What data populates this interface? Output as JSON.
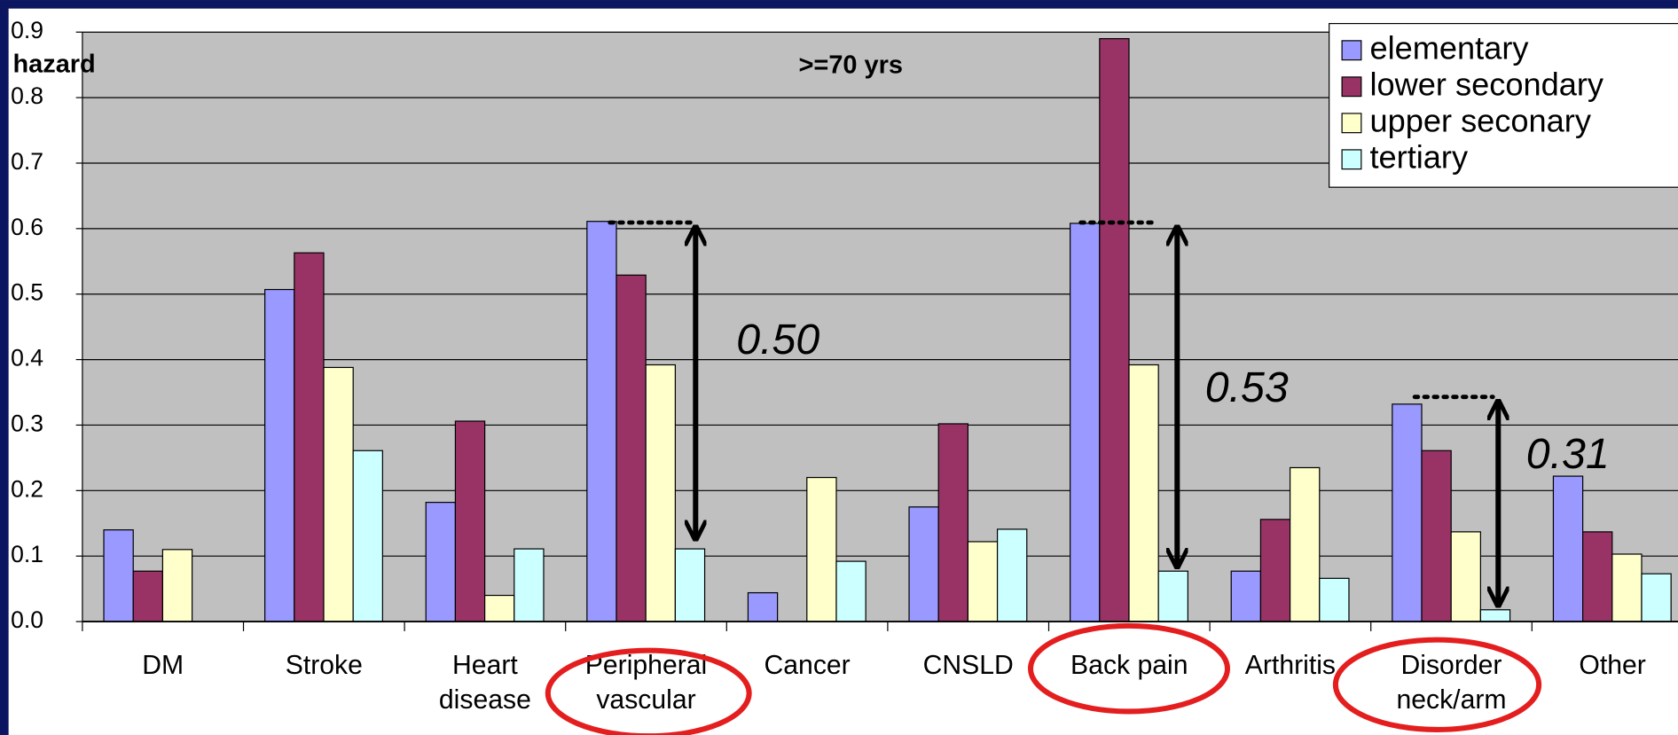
{
  "chart_data": {
    "type": "bar",
    "title": ">=70 yrs",
    "y_label": "hazard",
    "categories": [
      "DM",
      "Stroke",
      "Heart\ndisease",
      "Peripheral\nvascular",
      "Cancer",
      "CNSLD",
      "Back pain",
      "Arthritis",
      "Disorder\nneck/arm",
      "Other"
    ],
    "series": [
      {
        "name": "elementary",
        "color": "#9999ff",
        "values": [
          0.14,
          0.507,
          0.182,
          0.611,
          0.044,
          0.175,
          0.608,
          0.077,
          0.332,
          0.222
        ]
      },
      {
        "name": "lower secondary",
        "color": "#993366",
        "values": [
          0.077,
          0.563,
          0.306,
          0.529,
          null,
          0.302,
          0.89,
          0.156,
          0.261,
          0.137
        ]
      },
      {
        "name": "upper seconary",
        "color": "#ffffcc",
        "values": [
          0.11,
          0.388,
          0.04,
          0.392,
          0.22,
          0.122,
          0.392,
          0.235,
          0.137,
          0.103
        ]
      },
      {
        "name": "tertiary",
        "color": "#ccffff",
        "values": [
          null,
          0.261,
          0.111,
          0.111,
          0.092,
          0.141,
          0.077,
          0.066,
          0.018,
          0.073
        ]
      }
    ],
    "ylim": [
      0,
      0.9
    ],
    "yticks": [
      {
        "value": 0,
        "label": "0.0"
      },
      0.1,
      0.2,
      0.3,
      0.4,
      0.5,
      0.6,
      0.7,
      0.8,
      0.9
    ],
    "grid": true,
    "legend": "top-right",
    "annotations": [
      "0.50",
      "0.53",
      "0.31"
    ]
  }
}
